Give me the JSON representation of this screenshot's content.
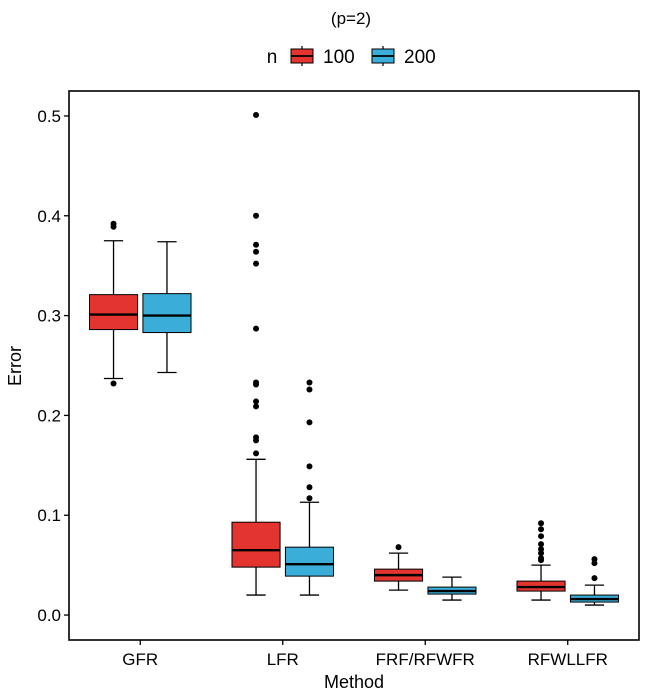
{
  "chart_data": {
    "type": "boxplot",
    "title": "(p=2)",
    "xlabel": "Method",
    "ylabel": "Error",
    "categories": [
      "GFR",
      "LFR",
      "FRF/RFWFR",
      "RFWLLFR"
    ],
    "ylim": [
      -0.025,
      0.525
    ],
    "yticks": [
      0.0,
      0.1,
      0.2,
      0.3,
      0.4,
      0.5
    ],
    "ytick_labels": [
      "0.0",
      "0.1",
      "0.2",
      "0.3",
      "0.4",
      "0.5"
    ],
    "grid": false,
    "legend": {
      "title": "n",
      "position": "top",
      "entries": [
        "100",
        "200"
      ]
    },
    "series": [
      {
        "name": "100",
        "color": "#E3342F",
        "boxes": [
          {
            "category": "GFR",
            "min": 0.237,
            "q1": 0.286,
            "median": 0.301,
            "q3": 0.321,
            "max": 0.375,
            "outliers": [
              0.392,
              0.389,
              0.232
            ]
          },
          {
            "category": "LFR",
            "min": 0.02,
            "q1": 0.048,
            "median": 0.065,
            "q3": 0.093,
            "max": 0.156,
            "outliers": [
              0.501,
              0.4,
              0.371,
              0.364,
              0.352,
              0.287,
              0.233,
              0.231,
              0.214,
              0.209,
              0.178,
              0.175,
              0.162
            ]
          },
          {
            "category": "FRF/RFWFR",
            "min": 0.025,
            "q1": 0.034,
            "median": 0.04,
            "q3": 0.046,
            "max": 0.062,
            "outliers": [
              0.068
            ]
          },
          {
            "category": "RFWLLFR",
            "min": 0.015,
            "q1": 0.024,
            "median": 0.028,
            "q3": 0.034,
            "max": 0.05,
            "outliers": [
              0.092,
              0.086,
              0.079,
              0.071,
              0.066,
              0.062,
              0.057,
              0.055
            ]
          }
        ]
      },
      {
        "name": "200",
        "color": "#3AAED8",
        "boxes": [
          {
            "category": "GFR",
            "min": 0.243,
            "q1": 0.283,
            "median": 0.3,
            "q3": 0.322,
            "max": 0.374,
            "outliers": []
          },
          {
            "category": "LFR",
            "min": 0.02,
            "q1": 0.039,
            "median": 0.051,
            "q3": 0.068,
            "max": 0.113,
            "outliers": [
              0.233,
              0.226,
              0.193,
              0.149,
              0.128,
              0.117
            ]
          },
          {
            "category": "FRF/RFWFR",
            "min": 0.015,
            "q1": 0.021,
            "median": 0.024,
            "q3": 0.028,
            "max": 0.038,
            "outliers": []
          },
          {
            "category": "RFWLLFR",
            "min": 0.01,
            "q1": 0.013,
            "median": 0.016,
            "q3": 0.02,
            "max": 0.03,
            "outliers": [
              0.056,
              0.052,
              0.037
            ]
          }
        ]
      }
    ]
  }
}
